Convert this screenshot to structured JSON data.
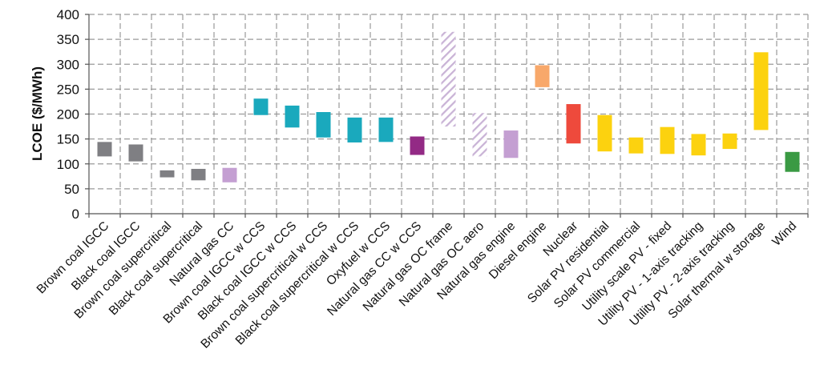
{
  "chart_data": {
    "type": "bar",
    "subtype": "floating-range",
    "ylabel": "LCOE ($/MWh)",
    "ylim": [
      0,
      400
    ],
    "yticks": [
      0,
      50,
      100,
      150,
      200,
      250,
      300,
      350,
      400
    ],
    "grid": true,
    "categories": [
      "Brown coal IGCC",
      "Black coal IGCC",
      "Brown coal supercritical",
      "Black coal supercritical",
      "Natural gas CC",
      "Brown coal IGCC w CCS",
      "Black coal IGCC w CCS",
      "Brown coal supercritical w CCS",
      "Black coal supercritical w CCS",
      "Oxyfuel w CCS",
      "Natural gas CC w CCS",
      "Natural gas OC frame",
      "Natural gas OC aero",
      "Natural gas engine",
      "Diesel engine",
      "Nuclear",
      "Solar PV residential",
      "Solar PV commercial",
      "Utility scale PV - fixed",
      "Utility PV - 1-axis tracking",
      "Utility PV - 2-axis tracking",
      "Solar thermal w storage",
      "Wind"
    ],
    "low": [
      115,
      105,
      73,
      67,
      63,
      198,
      173,
      153,
      143,
      144,
      118,
      175,
      115,
      112,
      254,
      141,
      125,
      121,
      120,
      117,
      130,
      168,
      84
    ],
    "high": [
      144,
      139,
      87,
      90,
      92,
      231,
      217,
      204,
      193,
      193,
      155,
      365,
      202,
      167,
      298,
      220,
      198,
      153,
      174,
      160,
      161,
      324,
      124
    ],
    "colors": [
      "#7f7f83",
      "#7f7f83",
      "#7f7f83",
      "#7f7f83",
      "#c49fd2",
      "#1aa9bd",
      "#1aa9bd",
      "#1aa9bd",
      "#1aa9bd",
      "#1aa9bd",
      "#932a85",
      "#c9b3d6",
      "#c9b3d6",
      "#c49fd2",
      "#f8a86a",
      "#ee4a3c",
      "#fcd20f",
      "#fcd20f",
      "#fcd20f",
      "#fcd20f",
      "#fcd20f",
      "#fcd20f",
      "#3a9a43"
    ],
    "hatched": [
      false,
      false,
      false,
      false,
      false,
      false,
      false,
      false,
      false,
      false,
      false,
      true,
      true,
      false,
      false,
      false,
      false,
      false,
      false,
      false,
      false,
      false,
      false
    ]
  }
}
